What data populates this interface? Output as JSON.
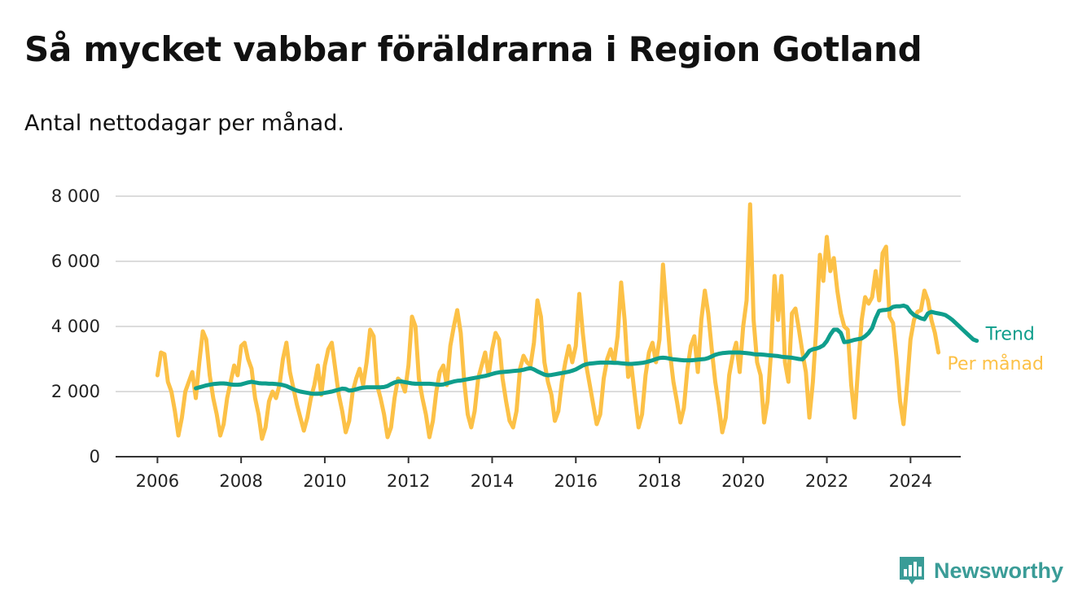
{
  "colors": {
    "monthly": "#fcc147",
    "trend": "#0f9e8c",
    "logo": "#3a9c97"
  },
  "logo": {
    "text": "Newsworthy",
    "icon": "bar-chart-speech-icon"
  },
  "chart_data": {
    "type": "line",
    "title": "Så mycket vabbar föräldrarna i Region Gotland",
    "subtitle": "Antal nettodagar per månad.",
    "xlabel": "",
    "ylabel": "",
    "ylim": [
      0,
      8000
    ],
    "xlim": [
      2005.0,
      2025.2
    ],
    "yticks": [
      0,
      2000,
      4000,
      6000,
      8000
    ],
    "ytick_labels": [
      "0",
      "2 000",
      "4 000",
      "6 000",
      "8 000"
    ],
    "xticks": [
      2006,
      2008,
      2010,
      2012,
      2014,
      2016,
      2018,
      2020,
      2022,
      2024
    ],
    "xtick_labels": [
      "2006",
      "2008",
      "2010",
      "2012",
      "2014",
      "2016",
      "2018",
      "2020",
      "2022",
      "2024"
    ],
    "grid": true,
    "series": [
      {
        "name": "Per månad",
        "start": 2006.0,
        "step": 0.08333,
        "values": [
          2500,
          3200,
          3150,
          2300,
          2000,
          1400,
          650,
          1200,
          2000,
          2300,
          2600,
          1800,
          2900,
          3850,
          3600,
          2500,
          1800,
          1300,
          650,
          1000,
          1800,
          2300,
          2800,
          2500,
          3400,
          3500,
          3000,
          2700,
          1800,
          1300,
          550,
          900,
          1700,
          2000,
          1800,
          2200,
          3000,
          3500,
          2600,
          2100,
          1600,
          1200,
          800,
          1200,
          1800,
          2200,
          2800,
          1900,
          2800,
          3300,
          3500,
          2700,
          1900,
          1400,
          750,
          1100,
          2000,
          2400,
          2700,
          2200,
          2900,
          3900,
          3700,
          2200,
          1800,
          1300,
          600,
          900,
          1800,
          2400,
          2300,
          2000,
          2800,
          4300,
          4000,
          2400,
          1800,
          1300,
          600,
          1100,
          2000,
          2600,
          2800,
          2200,
          3400,
          4000,
          4500,
          3800,
          2300,
          1300,
          900,
          1400,
          2400,
          2800,
          3200,
          2500,
          3300,
          3800,
          3600,
          2400,
          1700,
          1100,
          900,
          1400,
          2700,
          3100,
          2900,
          2800,
          3500,
          4800,
          4300,
          2900,
          2300,
          1900,
          1100,
          1400,
          2300,
          2900,
          3400,
          2900,
          3400,
          5000,
          3800,
          2800,
          2200,
          1600,
          1000,
          1300,
          2400,
          3000,
          3300,
          2900,
          3700,
          5350,
          4200,
          2450,
          2750,
          1800,
          900,
          1300,
          2500,
          3200,
          3500,
          2900,
          3600,
          5900,
          4500,
          3200,
          2300,
          1700,
          1050,
          1500,
          2700,
          3400,
          3700,
          2600,
          4200,
          5100,
          4400,
          3300,
          2300,
          1600,
          750,
          1200,
          2500,
          3100,
          3500,
          2600,
          4000,
          4800,
          7750,
          4200,
          2900,
          2500,
          1050,
          1700,
          3200,
          5550,
          4200,
          5550,
          2900,
          2300,
          4400,
          4550,
          3900,
          3200,
          2600,
          1200,
          2300,
          4000,
          6200,
          5400,
          6750,
          5700,
          6100,
          5100,
          4400,
          4000,
          3900,
          2200,
          1200,
          2800,
          4200,
          4900,
          4700,
          4900,
          5700,
          4800,
          6250,
          6450,
          4300,
          4100,
          3000,
          1700,
          1000,
          2200,
          3600,
          4200,
          4450,
          4500,
          5100,
          4800,
          4200,
          3800,
          3200
        ]
      },
      {
        "name": "Trend",
        "start": 2006.9167,
        "step": 0.08333,
        "values": [
          2100,
          2130,
          2160,
          2190,
          2210,
          2230,
          2240,
          2250,
          2250,
          2240,
          2220,
          2210,
          2210,
          2220,
          2250,
          2280,
          2300,
          2280,
          2260,
          2250,
          2250,
          2240,
          2240,
          2230,
          2220,
          2200,
          2170,
          2120,
          2070,
          2030,
          2000,
          1980,
          1960,
          1940,
          1930,
          1930,
          1940,
          1960,
          1980,
          2000,
          2030,
          2060,
          2090,
          2080,
          2030,
          2040,
          2070,
          2100,
          2120,
          2130,
          2130,
          2130,
          2130,
          2130,
          2140,
          2170,
          2230,
          2280,
          2310,
          2310,
          2290,
          2270,
          2250,
          2240,
          2240,
          2240,
          2240,
          2240,
          2230,
          2220,
          2210,
          2220,
          2250,
          2280,
          2310,
          2330,
          2340,
          2360,
          2380,
          2400,
          2420,
          2440,
          2460,
          2480,
          2510,
          2540,
          2570,
          2590,
          2600,
          2610,
          2620,
          2630,
          2640,
          2650,
          2670,
          2700,
          2720,
          2680,
          2620,
          2570,
          2520,
          2500,
          2510,
          2530,
          2550,
          2570,
          2590,
          2610,
          2640,
          2680,
          2740,
          2800,
          2840,
          2860,
          2870,
          2880,
          2890,
          2890,
          2890,
          2890,
          2880,
          2880,
          2870,
          2860,
          2850,
          2850,
          2860,
          2870,
          2880,
          2900,
          2930,
          2960,
          3000,
          3030,
          3040,
          3030,
          3010,
          2990,
          2980,
          2970,
          2960,
          2960,
          2960,
          2970,
          2980,
          2990,
          3000,
          3030,
          3080,
          3130,
          3160,
          3180,
          3190,
          3200,
          3200,
          3200,
          3200,
          3190,
          3180,
          3170,
          3150,
          3140,
          3140,
          3130,
          3120,
          3110,
          3100,
          3090,
          3070,
          3060,
          3050,
          3040,
          3020,
          3000,
          2990,
          3100,
          3250,
          3300,
          3320,
          3360,
          3420,
          3550,
          3750,
          3900,
          3900,
          3800,
          3520,
          3530,
          3560,
          3590,
          3610,
          3630,
          3700,
          3800,
          3950,
          4250,
          4480,
          4500,
          4510,
          4530,
          4600,
          4620,
          4620,
          4640,
          4600,
          4450,
          4350,
          4300,
          4250,
          4220,
          4400,
          4450,
          4420,
          4400,
          4380,
          4350,
          4280,
          4200,
          4100,
          4000,
          3900,
          3800,
          3700,
          3600,
          3560
        ]
      }
    ]
  }
}
